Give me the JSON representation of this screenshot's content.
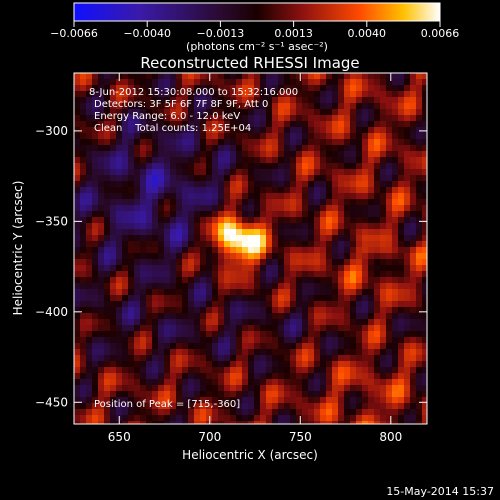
{
  "chart_data": {
    "type": "heatmap",
    "title": "Reconstructed RHESSI Image",
    "xlabel": "Heliocentric X (arcsec)",
    "ylabel": "Heliocentric Y (arcsec)",
    "xlim": [
      625,
      820
    ],
    "ylim": [
      -462,
      -268
    ],
    "x_ticks": [
      650,
      700,
      750,
      800
    ],
    "y_ticks": [
      -300,
      -350,
      -400,
      -450
    ],
    "x_tick_labels": [
      "650",
      "700",
      "750",
      "800"
    ],
    "y_tick_labels": [
      "−300",
      "−350",
      "−400",
      "−450"
    ],
    "colorbar": {
      "range": [
        -0.0066,
        0.0066
      ],
      "ticks": [
        "−0.0066",
        "−0.0040",
        "−0.0013",
        "0.0013",
        "0.0040",
        "0.0066"
      ],
      "units_label": "(photons cm⁻² s⁻¹ asec⁻²)"
    },
    "annotations": [
      "8-Jun-2012 15:30:08.000 to 15:32:16.000",
      "Detectors: 3F 5F 6F 7F 8F 9F, Att 0",
      "Energy Range: 6.0 - 12.0 keV",
      "Clean    Total counts: 1.25E+04"
    ],
    "peak_label": "Position of Peak = [715,-360]",
    "peak": {
      "x": 715,
      "y": -360
    },
    "timestamp": "15-May-2014 15:37",
    "colors": {
      "bar_low": "#0000ff",
      "bar_mid": "#000000",
      "bar_high": "#ffffff",
      "axis": "#ffffff"
    }
  }
}
